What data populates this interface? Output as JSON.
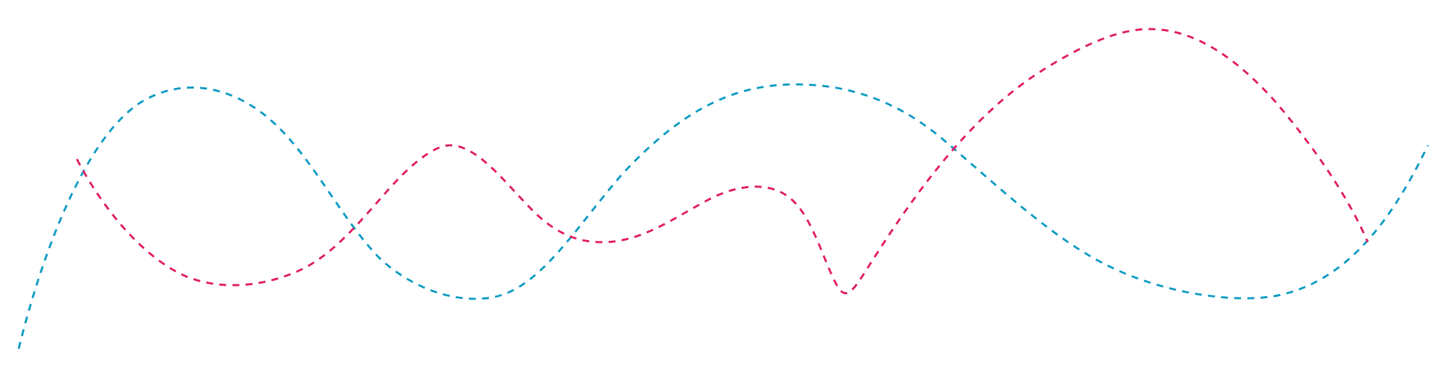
{
  "waves": [
    {
      "name": "cyan-dashed-wave",
      "color": "#0e9bc4"
    },
    {
      "name": "magenta-dashed-wave",
      "color": "#e01c63"
    }
  ]
}
